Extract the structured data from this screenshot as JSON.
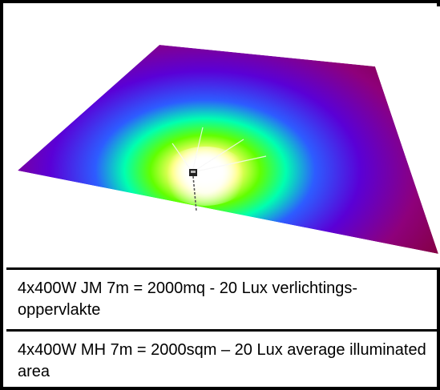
{
  "captions": {
    "dutch": "4x400W JM 7m = 2000mq - 20 Lux verlichtings-oppervlakte",
    "english": "4x400W MH 7m = 2000sqm – 20 Lux average illuminated area"
  },
  "colors": {
    "border": "#000000",
    "background": "#ffffff",
    "heatmap": [
      "#ffffff",
      "#ffff6a",
      "#62ff00",
      "#00ffb0",
      "#2d5cff",
      "#5a00d6",
      "#8e007b",
      "#7a0008"
    ]
  }
}
